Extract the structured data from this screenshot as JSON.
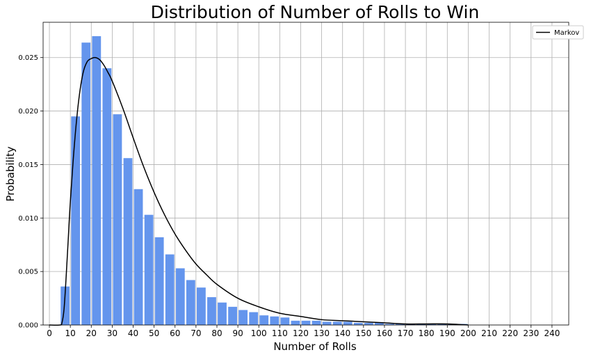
{
  "chart_data": {
    "type": "bar",
    "title": "Distribution of Number of Rolls to Win",
    "xlabel": "Number of Rolls",
    "ylabel": "Probability",
    "xlim": [
      -3,
      248
    ],
    "ylim": [
      0,
      0.0283
    ],
    "grid": true,
    "x_ticks": [
      0,
      10,
      20,
      30,
      40,
      50,
      60,
      70,
      80,
      90,
      100,
      110,
      120,
      130,
      140,
      150,
      160,
      170,
      180,
      190,
      200,
      210,
      220,
      230,
      240
    ],
    "y_ticks": [
      0.0,
      0.005,
      0.01,
      0.015,
      0.02,
      0.025
    ],
    "y_tick_labels": [
      "0.000",
      "0.005",
      "0.010",
      "0.015",
      "0.020",
      "0.025"
    ],
    "bar_color": "#6495ED",
    "bar_width": 4.25,
    "bars": {
      "x": [
        7.5,
        12.5,
        17.5,
        22.5,
        27.5,
        32.5,
        37.5,
        42.5,
        47.5,
        52.5,
        57.5,
        62.5,
        67.5,
        72.5,
        77.5,
        82.5,
        87.5,
        92.5,
        97.5,
        102.5,
        107.5,
        112.5,
        117.5,
        122.5,
        127.5,
        132.5,
        137.5,
        142.5,
        147.5,
        152.5,
        157.5,
        162.5,
        167.5,
        172.5,
        177.5,
        182.5,
        187.5,
        192.5,
        197.5
      ],
      "values": [
        0.0036,
        0.0195,
        0.0264,
        0.027,
        0.024,
        0.0197,
        0.0156,
        0.0127,
        0.0103,
        0.0082,
        0.0066,
        0.0053,
        0.0042,
        0.0035,
        0.0026,
        0.0021,
        0.0017,
        0.0014,
        0.0012,
        0.0009,
        0.0008,
        0.0007,
        0.0004,
        0.0004,
        0.0004,
        0.0003,
        0.0003,
        0.0003,
        0.0002,
        0.0002,
        0.0002,
        0.0001,
        0.0001,
        0.0001,
        0.0001,
        0.0001,
        0.0001,
        0.0001,
        0.0001
      ]
    },
    "series": [
      {
        "name": "Markov",
        "type": "line",
        "color": "#000000",
        "x": [
          0,
          5,
          6,
          7,
          8,
          9,
          10,
          12,
          14,
          16,
          18,
          20,
          22,
          24,
          26,
          28,
          30,
          35,
          40,
          45,
          50,
          55,
          60,
          65,
          70,
          75,
          80,
          90,
          100,
          110,
          120,
          130,
          140,
          150,
          160,
          170,
          180,
          190,
          200
        ],
        "y": [
          0,
          0,
          0.0002,
          0.0015,
          0.0045,
          0.008,
          0.0115,
          0.017,
          0.021,
          0.0235,
          0.0246,
          0.0249,
          0.025,
          0.0248,
          0.0243,
          0.0236,
          0.0228,
          0.0203,
          0.0175,
          0.0148,
          0.0124,
          0.0103,
          0.0085,
          0.007,
          0.0057,
          0.0047,
          0.0038,
          0.0025,
          0.0017,
          0.0011,
          0.0008,
          0.0005,
          0.0004,
          0.0003,
          0.0002,
          0.0001,
          0.0001,
          0.0001,
          0.0
        ]
      }
    ],
    "legend": {
      "position": "top-right",
      "entries": [
        "Markov"
      ]
    }
  }
}
